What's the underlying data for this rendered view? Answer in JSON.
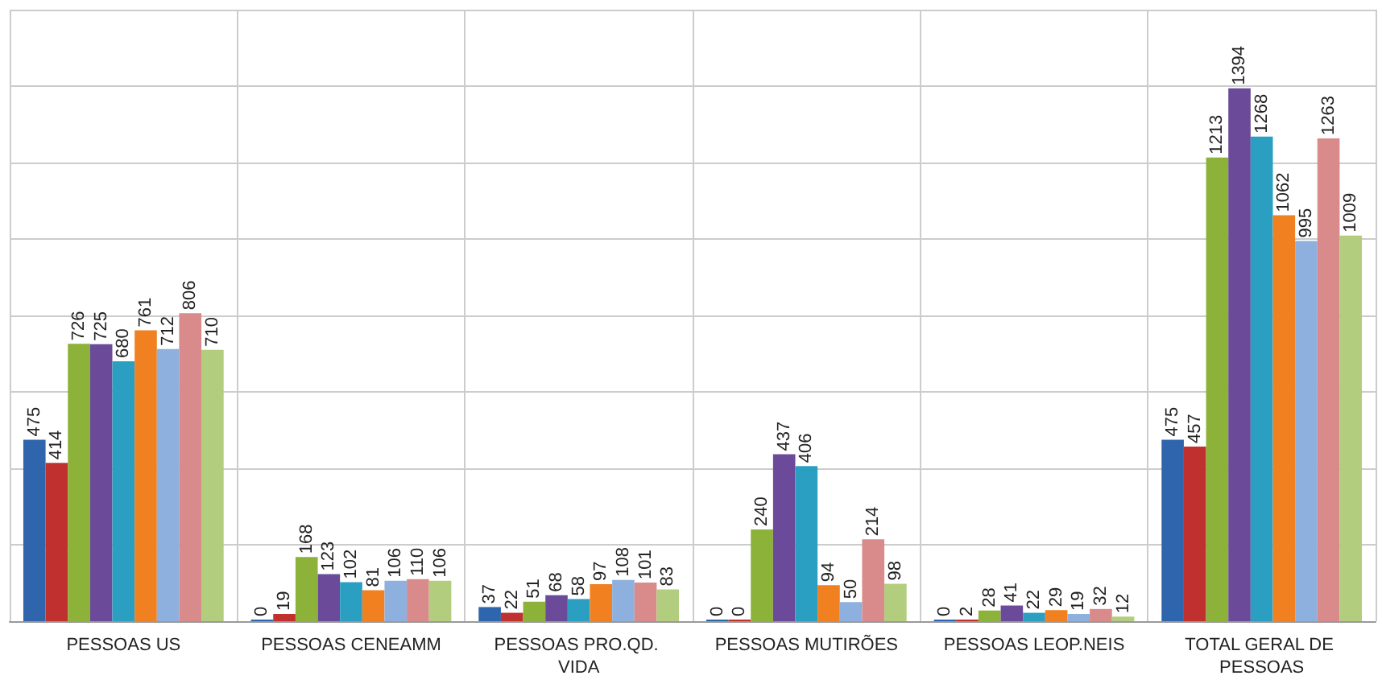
{
  "chart_data": {
    "type": "bar",
    "categories": [
      "PESSOAS US",
      "PESSOAS CENEAMM",
      "PESSOAS PRO.QD. VIDA",
      "PESSOAS MUTIRÕES",
      "PESSOAS LEOP.NEIS",
      "TOTAL GERAL DE PESSOAS"
    ],
    "series": [
      {
        "color": "#2f65ad",
        "values": [
          475,
          0,
          37,
          0,
          0,
          475
        ]
      },
      {
        "color": "#c0302e",
        "values": [
          414,
          19,
          22,
          0,
          2,
          457
        ]
      },
      {
        "color": "#8cb23a",
        "values": [
          726,
          168,
          51,
          240,
          28,
          1213
        ]
      },
      {
        "color": "#6b4a9a",
        "values": [
          725,
          123,
          68,
          437,
          41,
          1394
        ]
      },
      {
        "color": "#2a9fc2",
        "values": [
          680,
          102,
          58,
          406,
          22,
          1268
        ]
      },
      {
        "color": "#f08020",
        "values": [
          761,
          81,
          97,
          94,
          29,
          1062
        ]
      },
      {
        "color": "#8eb0de",
        "values": [
          712,
          106,
          108,
          50,
          19,
          995
        ]
      },
      {
        "color": "#d98a8a",
        "values": [
          806,
          110,
          101,
          214,
          32,
          1263
        ]
      },
      {
        "color": "#b3cd7f",
        "values": [
          710,
          106,
          83,
          98,
          12,
          1009
        ]
      }
    ],
    "ylim": [
      0,
      1600
    ],
    "yticks": [
      {
        "value": 0,
        "label": null
      },
      {
        "value": 200,
        "label": null
      },
      {
        "value": 400,
        "label": null
      },
      {
        "value": 600,
        "label": null
      },
      {
        "value": 800,
        "label": null
      },
      {
        "value": 1000,
        "label": null
      },
      {
        "value": 1200,
        "label": null
      },
      {
        "value": 1400,
        "label": null
      },
      {
        "value": 1600,
        "label": null
      }
    ],
    "grid": true,
    "tick_labels": "x",
    "data_labels": true
  }
}
